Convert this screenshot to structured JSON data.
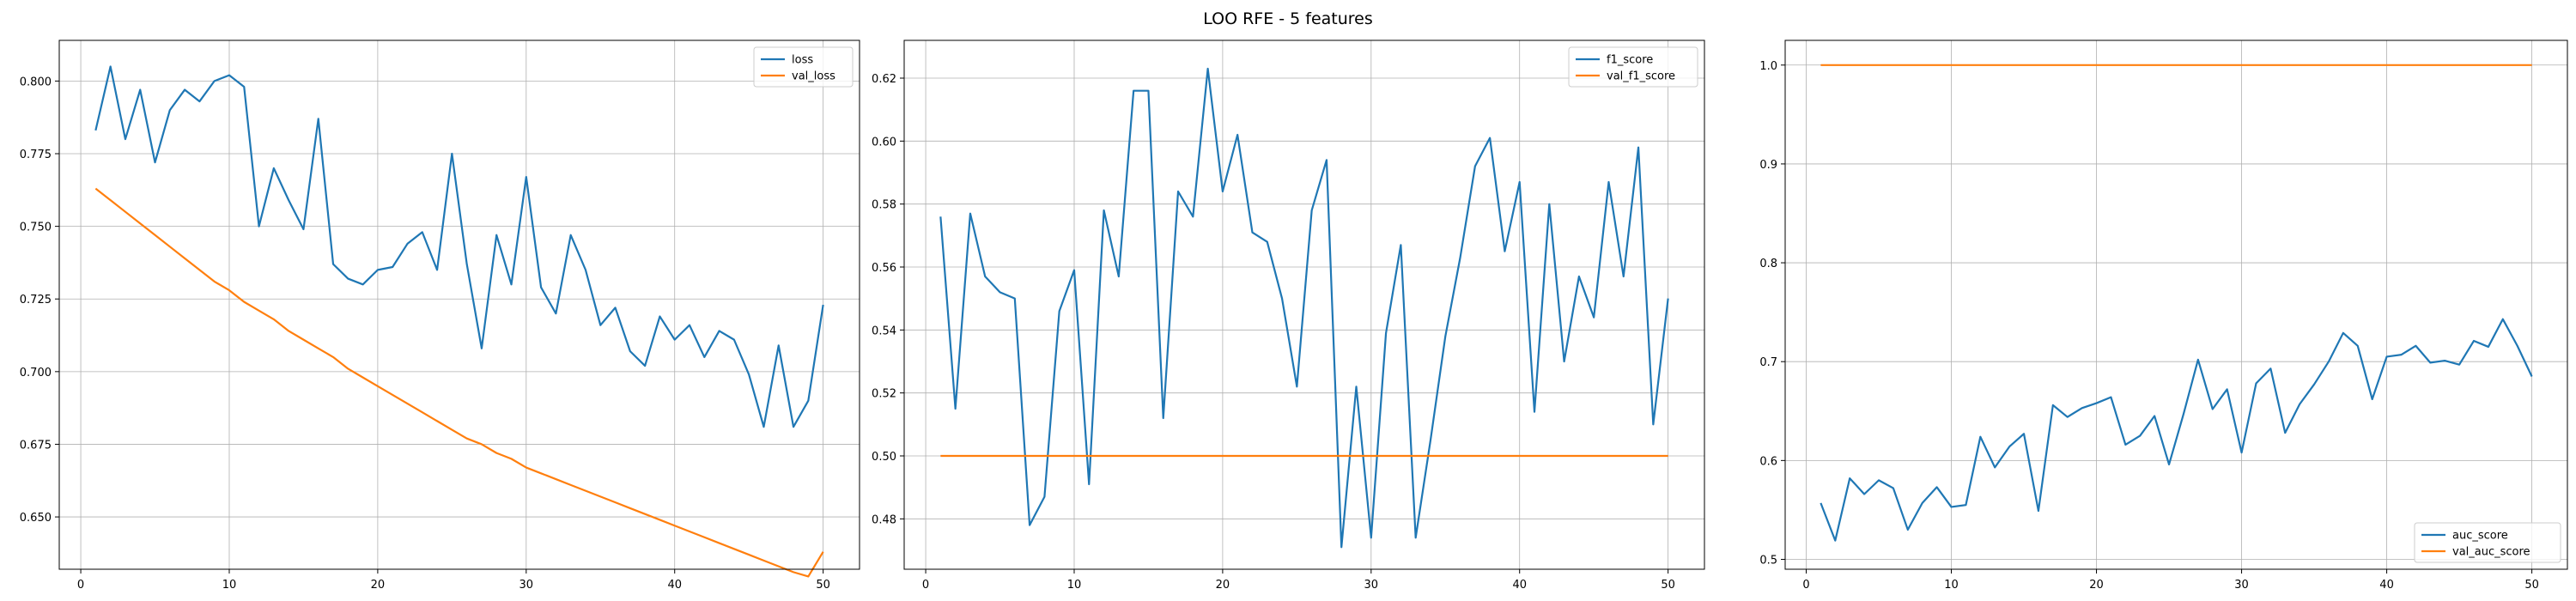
{
  "figure": {
    "title": "LOO RFE - 5 features"
  },
  "chart_data": [
    {
      "type": "line",
      "title": "",
      "xlabel": "",
      "ylabel": "",
      "xlim": [
        -1.45,
        52.45
      ],
      "ylim": [
        0.632,
        0.814
      ],
      "xticks": [
        0,
        10,
        20,
        30,
        40,
        50
      ],
      "yticks": [
        0.65,
        0.675,
        0.7,
        0.725,
        0.75,
        0.775,
        0.8
      ],
      "ytick_labels": [
        "0.650",
        "0.675",
        "0.700",
        "0.725",
        "0.750",
        "0.775",
        "0.800"
      ],
      "grid": true,
      "legend_position": "upper right",
      "series": [
        {
          "name": "loss",
          "color": "#1f77b4",
          "x": [
            1,
            2,
            3,
            4,
            5,
            6,
            7,
            8,
            9,
            10,
            11,
            12,
            13,
            14,
            15,
            16,
            17,
            18,
            19,
            20,
            21,
            22,
            23,
            24,
            25,
            26,
            27,
            28,
            29,
            30,
            31,
            32,
            33,
            34,
            35,
            36,
            37,
            38,
            39,
            40,
            41,
            42,
            43,
            44,
            45,
            46,
            47,
            48,
            49,
            50
          ],
          "y": [
            0.783,
            0.805,
            0.78,
            0.797,
            0.772,
            0.79,
            0.797,
            0.793,
            0.8,
            0.802,
            0.798,
            0.75,
            0.77,
            0.759,
            0.749,
            0.787,
            0.737,
            0.732,
            0.73,
            0.735,
            0.736,
            0.744,
            0.748,
            0.735,
            0.775,
            0.737,
            0.708,
            0.747,
            0.73,
            0.767,
            0.729,
            0.72,
            0.747,
            0.735,
            0.716,
            0.722,
            0.707,
            0.702,
            0.719,
            0.711,
            0.716,
            0.705,
            0.714,
            0.711,
            0.699,
            0.681,
            0.709,
            0.681,
            0.69,
            0.723
          ]
        },
        {
          "name": "val_loss",
          "color": "#ff7f0e",
          "x": [
            1,
            2,
            3,
            4,
            5,
            6,
            7,
            8,
            9,
            10,
            11,
            12,
            13,
            14,
            15,
            16,
            17,
            18,
            19,
            20,
            21,
            22,
            23,
            24,
            25,
            26,
            27,
            28,
            29,
            30,
            31,
            32,
            33,
            34,
            35,
            36,
            37,
            38,
            39,
            40,
            41,
            42,
            43,
            44,
            45,
            46,
            47,
            48,
            49,
            50
          ],
          "y": [
            0.763,
            0.759,
            0.755,
            0.751,
            0.747,
            0.743,
            0.739,
            0.735,
            0.731,
            0.728,
            0.724,
            0.721,
            0.718,
            0.714,
            0.711,
            0.708,
            0.705,
            0.701,
            0.698,
            0.695,
            0.692,
            0.689,
            0.686,
            0.683,
            0.68,
            0.677,
            0.675,
            0.672,
            0.67,
            0.667,
            0.665,
            0.663,
            0.661,
            0.659,
            0.657,
            0.655,
            0.653,
            0.651,
            0.649,
            0.647,
            0.645,
            0.643,
            0.641,
            0.639,
            0.637,
            0.635,
            0.633,
            0.631,
            0.6295,
            0.638
          ]
        }
      ]
    },
    {
      "type": "line",
      "title": "",
      "xlabel": "",
      "ylabel": "",
      "xlim": [
        -1.45,
        52.45
      ],
      "ylim": [
        0.464,
        0.632
      ],
      "xticks": [
        0,
        10,
        20,
        30,
        40,
        50
      ],
      "yticks": [
        0.48,
        0.5,
        0.52,
        0.54,
        0.56,
        0.58,
        0.6,
        0.62
      ],
      "ytick_labels": [
        "0.48",
        "0.50",
        "0.52",
        "0.54",
        "0.56",
        "0.58",
        "0.60",
        "0.62"
      ],
      "grid": true,
      "legend_position": "upper right",
      "series": [
        {
          "name": "f1_score",
          "color": "#1f77b4",
          "x": [
            1,
            2,
            3,
            4,
            5,
            6,
            7,
            8,
            9,
            10,
            11,
            12,
            13,
            14,
            15,
            16,
            17,
            18,
            19,
            20,
            21,
            22,
            23,
            24,
            25,
            26,
            27,
            28,
            29,
            30,
            31,
            32,
            33,
            34,
            35,
            36,
            37,
            38,
            39,
            40,
            41,
            42,
            43,
            44,
            45,
            46,
            47,
            48,
            49,
            50
          ],
          "y": [
            0.576,
            0.515,
            0.577,
            0.557,
            0.552,
            0.55,
            0.478,
            0.487,
            0.546,
            0.559,
            0.491,
            0.578,
            0.557,
            0.616,
            0.616,
            0.512,
            0.584,
            0.576,
            0.623,
            0.584,
            0.602,
            0.571,
            0.568,
            0.55,
            0.522,
            0.578,
            0.594,
            0.471,
            0.522,
            0.474,
            0.539,
            0.567,
            0.474,
            0.505,
            0.538,
            0.563,
            0.592,
            0.601,
            0.565,
            0.587,
            0.514,
            0.58,
            0.53,
            0.557,
            0.544,
            0.587,
            0.557,
            0.598,
            0.51,
            0.55
          ]
        },
        {
          "name": "val_f1_score",
          "color": "#ff7f0e",
          "x": [
            1,
            50
          ],
          "y": [
            0.5,
            0.5
          ]
        }
      ]
    },
    {
      "type": "line",
      "title": "",
      "xlabel": "",
      "ylabel": "",
      "xlim": [
        -1.45,
        52.45
      ],
      "ylim": [
        0.49,
        1.025
      ],
      "xticks": [
        0,
        10,
        20,
        30,
        40,
        50
      ],
      "yticks": [
        0.5,
        0.6,
        0.7,
        0.8,
        0.9,
        1.0
      ],
      "ytick_labels": [
        "0.5",
        "0.6",
        "0.7",
        "0.8",
        "0.9",
        "1.0"
      ],
      "grid": true,
      "legend_position": "lower right",
      "series": [
        {
          "name": "auc_score",
          "color": "#1f77b4",
          "x": [
            1,
            2,
            3,
            4,
            5,
            6,
            7,
            8,
            9,
            10,
            11,
            12,
            13,
            14,
            15,
            16,
            17,
            18,
            19,
            20,
            21,
            22,
            23,
            24,
            25,
            26,
            27,
            28,
            29,
            30,
            31,
            32,
            33,
            34,
            35,
            36,
            37,
            38,
            39,
            40,
            41,
            42,
            43,
            44,
            45,
            46,
            47,
            48,
            49,
            50
          ],
          "y": [
            0.557,
            0.519,
            0.582,
            0.566,
            0.58,
            0.572,
            0.53,
            0.557,
            0.573,
            0.553,
            0.555,
            0.624,
            0.593,
            0.614,
            0.627,
            0.549,
            0.656,
            0.644,
            0.653,
            0.658,
            0.664,
            0.616,
            0.625,
            0.645,
            0.596,
            0.647,
            0.702,
            0.652,
            0.672,
            0.608,
            0.678,
            0.693,
            0.628,
            0.657,
            0.677,
            0.7,
            0.729,
            0.716,
            0.662,
            0.705,
            0.707,
            0.716,
            0.699,
            0.701,
            0.697,
            0.721,
            0.715,
            0.743,
            0.716,
            0.685
          ]
        },
        {
          "name": "val_auc_score",
          "color": "#ff7f0e",
          "x": [
            1,
            50
          ],
          "y": [
            1.0,
            1.0
          ]
        }
      ]
    }
  ]
}
